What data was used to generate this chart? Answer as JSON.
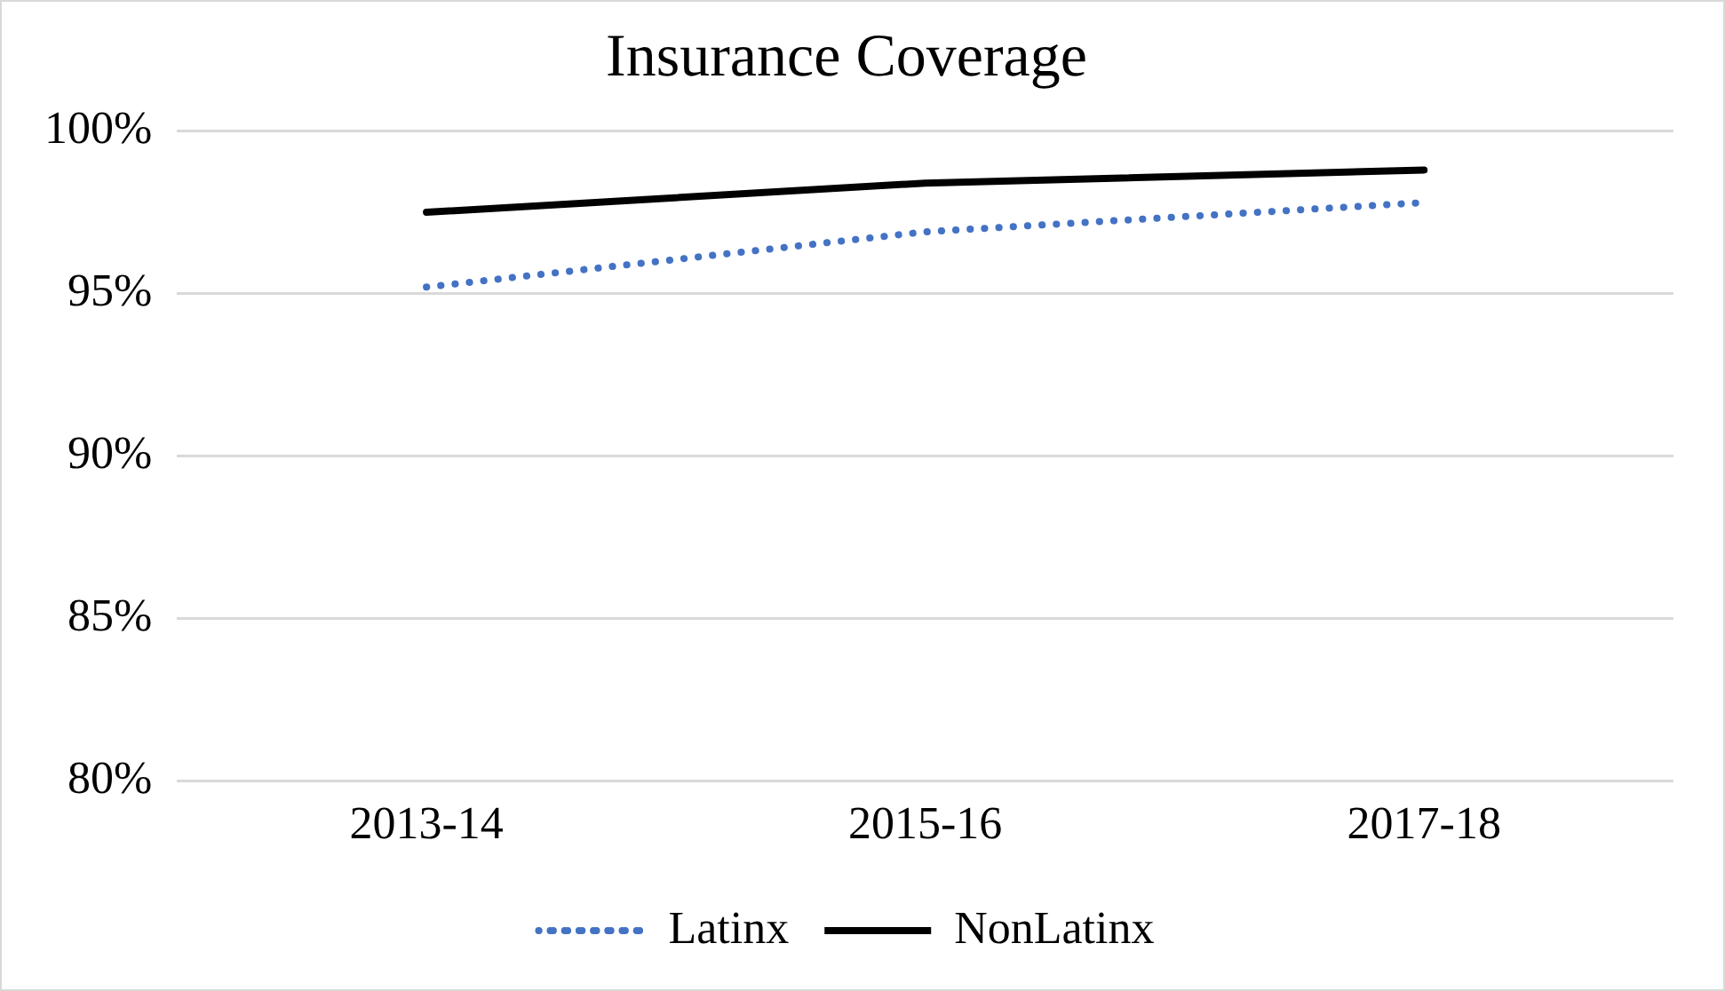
{
  "chart_data": {
    "type": "line",
    "title": "Insurance Coverage",
    "categories": [
      "2013-14",
      "2015-16",
      "2017-18"
    ],
    "series": [
      {
        "name": "Latinx",
        "color": "#4472c4",
        "line_style": "dotted",
        "values": [
          95.2,
          96.9,
          97.8
        ]
      },
      {
        "name": "NonLatinx",
        "color": "#000000",
        "line_style": "solid",
        "values": [
          97.5,
          98.4,
          98.8
        ]
      }
    ],
    "ylim": [
      80,
      100
    ],
    "yticks": [
      {
        "value": 80,
        "label": "80%"
      },
      {
        "value": 85,
        "label": "85%"
      },
      {
        "value": 90,
        "label": "90%"
      },
      {
        "value": 95,
        "label": "95%"
      },
      {
        "value": 100,
        "label": "100%"
      }
    ],
    "grid": "y",
    "legend": "bottom",
    "marker": "none"
  }
}
